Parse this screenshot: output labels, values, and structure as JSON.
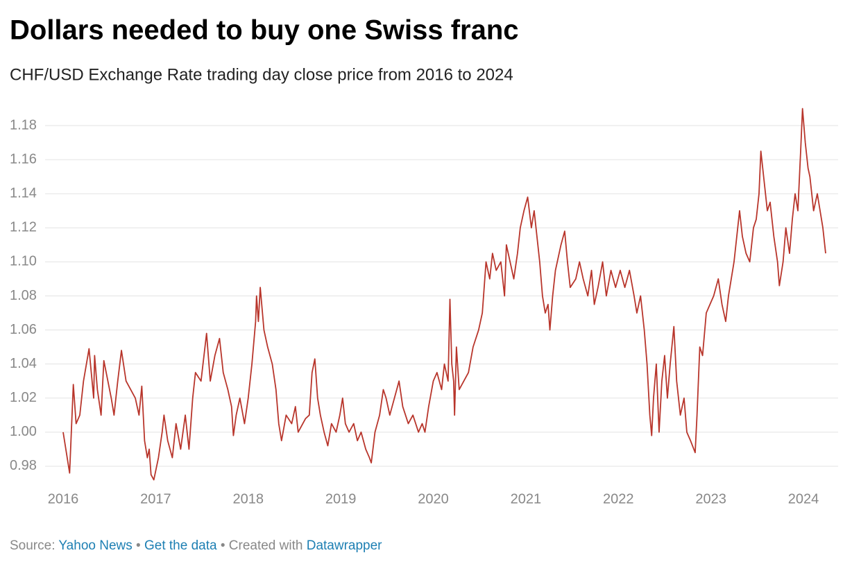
{
  "chart_data": {
    "type": "line",
    "title": "Dollars needed to buy one Swiss franc",
    "subtitle": "CHF/USD Exchange Rate trading day close price from 2016 to 2024",
    "footer": {
      "source_label": "Source:",
      "source": "Yahoo News",
      "separator": "•",
      "get_data": "Get the data",
      "created": "Created with",
      "credit": "Datawrapper"
    },
    "x": [
      2016.0,
      2016.07,
      2016.11,
      2016.14,
      2016.18,
      2016.22,
      2016.28,
      2016.33,
      2016.34,
      2016.37,
      2016.41,
      2016.44,
      2016.52,
      2016.55,
      2016.59,
      2016.63,
      2016.68,
      2016.78,
      2016.82,
      2016.85,
      2016.88,
      2016.91,
      2016.93,
      2016.95,
      2016.98,
      2017.03,
      2017.07,
      2017.09,
      2017.13,
      2017.18,
      2017.22,
      2017.27,
      2017.32,
      2017.36,
      2017.4,
      2017.43,
      2017.49,
      2017.55,
      2017.59,
      2017.64,
      2017.69,
      2017.73,
      2017.78,
      2017.82,
      2017.84,
      2017.87,
      2017.91,
      2017.96,
      2018.0,
      2018.04,
      2018.08,
      2018.09,
      2018.11,
      2018.13,
      2018.17,
      2018.21,
      2018.26,
      2018.3,
      2018.33,
      2018.36,
      2018.41,
      2018.47,
      2018.51,
      2018.54,
      2018.62,
      2018.66,
      2018.69,
      2018.72,
      2018.75,
      2018.78,
      2018.82,
      2018.86,
      2018.9,
      2018.95,
      2018.99,
      2019.02,
      2019.05,
      2019.09,
      2019.14,
      2019.18,
      2019.22,
      2019.27,
      2019.31,
      2019.33,
      2019.37,
      2019.42,
      2019.46,
      2019.49,
      2019.53,
      2019.58,
      2019.63,
      2019.67,
      2019.73,
      2019.78,
      2019.84,
      2019.88,
      2019.91,
      2019.95,
      2020.0,
      2020.04,
      2020.09,
      2020.12,
      2020.16,
      2020.18,
      2020.2,
      2020.22,
      2020.23,
      2020.25,
      2020.28,
      2020.33,
      2020.38,
      2020.43,
      2020.49,
      2020.53,
      2020.57,
      2020.61,
      2020.64,
      2020.68,
      2020.73,
      2020.77,
      2020.79,
      2020.83,
      2020.87,
      2020.91,
      2020.94,
      2020.98,
      2021.02,
      2021.06,
      2021.09,
      2021.13,
      2021.15,
      2021.18,
      2021.21,
      2021.24,
      2021.26,
      2021.29,
      2021.32,
      2021.38,
      2021.42,
      2021.45,
      2021.48,
      2021.54,
      2021.58,
      2021.62,
      2021.67,
      2021.71,
      2021.74,
      2021.78,
      2021.83,
      2021.87,
      2021.92,
      2021.97,
      2022.02,
      2022.07,
      2022.12,
      2022.17,
      2022.2,
      2022.24,
      2022.28,
      2022.31,
      2022.34,
      2022.36,
      2022.38,
      2022.41,
      2022.44,
      2022.47,
      2022.5,
      2022.53,
      2022.56,
      2022.6,
      2022.63,
      2022.67,
      2022.71,
      2022.74,
      2022.78,
      2022.83,
      2022.85,
      2022.88,
      2022.91,
      2022.95,
      2022.99,
      2023.03,
      2023.08,
      2023.12,
      2023.16,
      2023.19,
      2023.25,
      2023.31,
      2023.34,
      2023.38,
      2023.42,
      2023.46,
      2023.49,
      2023.52,
      2023.54,
      2023.57,
      2023.61,
      2023.64,
      2023.68,
      2023.72,
      2023.74,
      2023.78,
      2023.81,
      2023.85,
      2023.88,
      2023.91,
      2023.94,
      2023.97,
      2023.99,
      2024.02,
      2024.05,
      2024.07,
      2024.11,
      2024.15,
      2024.18,
      2024.21,
      2024.24
    ],
    "series": [
      {
        "name": "CHF/USD",
        "color": "#b8352b",
        "values": [
          1.0,
          0.976,
          1.028,
          1.005,
          1.01,
          1.03,
          1.049,
          1.02,
          1.045,
          1.025,
          1.01,
          1.042,
          1.02,
          1.01,
          1.03,
          1.048,
          1.03,
          1.02,
          1.01,
          1.027,
          0.995,
          0.985,
          0.99,
          0.975,
          0.972,
          0.985,
          1.0,
          1.01,
          0.995,
          0.985,
          1.005,
          0.99,
          1.01,
          0.99,
          1.02,
          1.035,
          1.03,
          1.058,
          1.03,
          1.045,
          1.055,
          1.035,
          1.025,
          1.015,
          0.998,
          1.01,
          1.02,
          1.005,
          1.02,
          1.04,
          1.065,
          1.08,
          1.065,
          1.085,
          1.06,
          1.05,
          1.04,
          1.025,
          1.005,
          0.995,
          1.01,
          1.005,
          1.015,
          1.0,
          1.008,
          1.01,
          1.035,
          1.043,
          1.02,
          1.01,
          1.0,
          0.992,
          1.005,
          1.0,
          1.01,
          1.02,
          1.005,
          1.0,
          1.005,
          0.995,
          1.0,
          0.99,
          0.985,
          0.982,
          1.0,
          1.01,
          1.025,
          1.02,
          1.01,
          1.02,
          1.03,
          1.015,
          1.005,
          1.01,
          1.0,
          1.005,
          1.0,
          1.015,
          1.03,
          1.035,
          1.025,
          1.04,
          1.03,
          1.078,
          1.04,
          1.03,
          1.01,
          1.05,
          1.025,
          1.03,
          1.035,
          1.05,
          1.06,
          1.07,
          1.1,
          1.09,
          1.105,
          1.095,
          1.1,
          1.08,
          1.11,
          1.1,
          1.09,
          1.105,
          1.12,
          1.13,
          1.138,
          1.12,
          1.13,
          1.11,
          1.1,
          1.08,
          1.07,
          1.075,
          1.06,
          1.08,
          1.095,
          1.11,
          1.118,
          1.1,
          1.085,
          1.09,
          1.1,
          1.09,
          1.08,
          1.095,
          1.075,
          1.085,
          1.1,
          1.08,
          1.095,
          1.085,
          1.095,
          1.085,
          1.095,
          1.08,
          1.07,
          1.08,
          1.06,
          1.04,
          1.01,
          0.998,
          1.02,
          1.04,
          1.0,
          1.03,
          1.045,
          1.02,
          1.04,
          1.062,
          1.03,
          1.01,
          1.02,
          1.0,
          0.995,
          0.988,
          1.01,
          1.05,
          1.045,
          1.07,
          1.075,
          1.08,
          1.09,
          1.075,
          1.065,
          1.08,
          1.1,
          1.13,
          1.115,
          1.105,
          1.1,
          1.12,
          1.125,
          1.14,
          1.165,
          1.15,
          1.13,
          1.135,
          1.115,
          1.1,
          1.086,
          1.1,
          1.12,
          1.105,
          1.125,
          1.14,
          1.13,
          1.165,
          1.19,
          1.17,
          1.155,
          1.15,
          1.13,
          1.14,
          1.13,
          1.12,
          1.105
        ]
      }
    ],
    "xlim": [
      2016,
      2024.24
    ],
    "xticks": [
      2016,
      2017,
      2018,
      2019,
      2020,
      2021,
      2022,
      2023,
      2024
    ],
    "ylim": [
      0.97,
      1.19
    ],
    "yticks": [
      0.98,
      {
        "value": 1,
        "label": "1.00"
      },
      1.02,
      1.04,
      1.06,
      1.08,
      {
        "value": 1.1,
        "label": "1.10"
      },
      1.12,
      1.14,
      1.16,
      1.18
    ],
    "grid": true
  }
}
